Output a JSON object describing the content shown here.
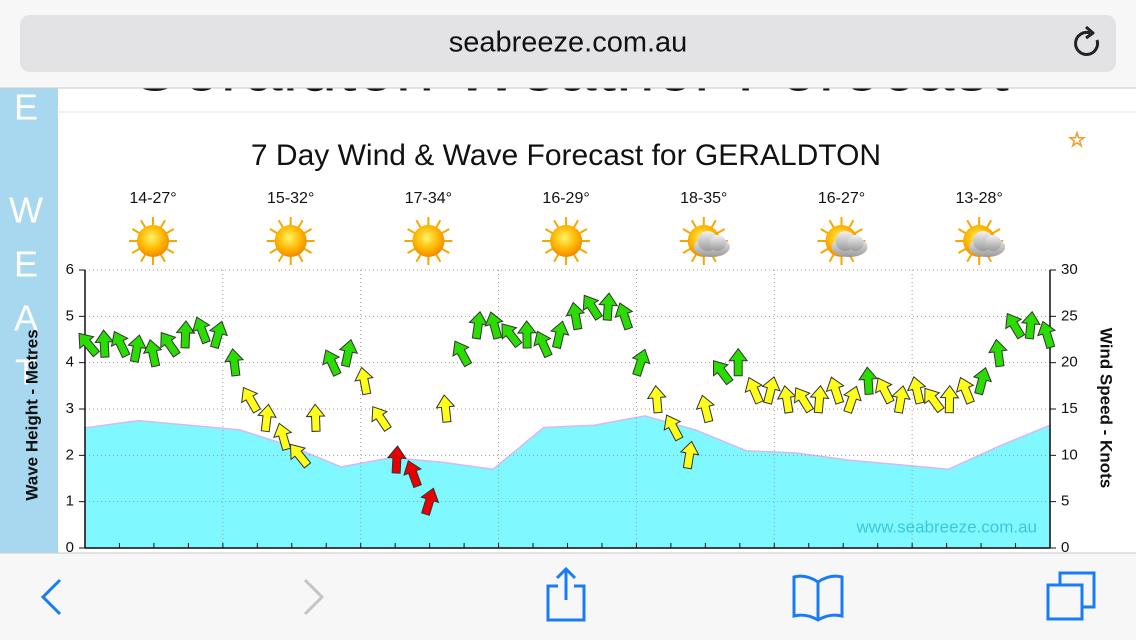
{
  "browser": {
    "url": "seabreeze.com.au"
  },
  "page": {
    "heading": "Geraldton Weather Forecast",
    "sidebar_letters": [
      "E",
      "W",
      "E",
      "A",
      "T"
    ]
  },
  "chart_data": {
    "type": "wind-wave",
    "title": "7 Day Wind & Wave Forecast for GERALDTON",
    "days": [
      "14-27°",
      "15-32°",
      "17-34°",
      "16-29°",
      "18-35°",
      "16-27°",
      "13-28°"
    ],
    "y_label": "Wave Height - Metres",
    "y2_label": "Wind Speed - Knots",
    "watermark": "www.seabreeze.com.au",
    "ylim": [
      0,
      6
    ],
    "yticks": [
      0,
      1,
      2,
      3,
      4,
      5,
      6
    ],
    "y2lim": [
      0,
      30
    ],
    "y2ticks": [
      0,
      5,
      10,
      15,
      20,
      25,
      30
    ],
    "grid": true,
    "series": [
      {
        "color": "#80f8ff",
        "values": [
          2.6,
          2.75,
          2.65,
          2.55,
          2.2,
          1.75,
          1.95,
          1.85,
          1.7,
          2.6,
          2.65,
          2.85,
          2.55,
          2.1,
          2.05,
          1.9,
          1.8,
          1.7,
          2.2,
          2.65
        ]
      },
      {
        "axis": "y2",
        "values": [
          22,
          22,
          22,
          21.5,
          21,
          22,
          23,
          23.5,
          23,
          20,
          16,
          14,
          12,
          10,
          14,
          20,
          21,
          18,
          14,
          9.5,
          8,
          5,
          15,
          21,
          24,
          24,
          23,
          23,
          22,
          23,
          25,
          26,
          26,
          25,
          20,
          16,
          13,
          10,
          15,
          19,
          20,
          17,
          17,
          16,
          16,
          16,
          17,
          16,
          18,
          17,
          16,
          17,
          16,
          16,
          17,
          18,
          21,
          24,
          24,
          23
        ],
        "colors": [
          "#2bdc00",
          "#2bdc00",
          "#2bdc00",
          "#2bdc00",
          "#2bdc00",
          "#2bdc00",
          "#2bdc00",
          "#2bdc00",
          "#2bdc00",
          "#2bdc00",
          "#ffff1a",
          "#ffff1a",
          "#ffff1a",
          "#ffff1a",
          "#ffff1a",
          "#2bdc00",
          "#2bdc00",
          "#ffff1a",
          "#ffff1a",
          "#e80000",
          "#e80000",
          "#e80000",
          "#ffff1a",
          "#2bdc00",
          "#2bdc00",
          "#2bdc00",
          "#2bdc00",
          "#2bdc00",
          "#2bdc00",
          "#2bdc00",
          "#2bdc00",
          "#2bdc00",
          "#2bdc00",
          "#2bdc00",
          "#2bdc00",
          "#ffff1a",
          "#ffff1a",
          "#ffff1a",
          "#ffff1a",
          "#2bdc00",
          "#2bdc00",
          "#ffff1a",
          "#ffff1a",
          "#ffff1a",
          "#ffff1a",
          "#ffff1a",
          "#ffff1a",
          "#ffff1a",
          "#2bdc00",
          "#ffff1a",
          "#ffff1a",
          "#ffff1a",
          "#ffff1a",
          "#ffff1a",
          "#ffff1a",
          "#2bdc00",
          "#2bdc00",
          "#2bdc00",
          "#2bdc00",
          "#2bdc00"
        ]
      }
    ]
  }
}
